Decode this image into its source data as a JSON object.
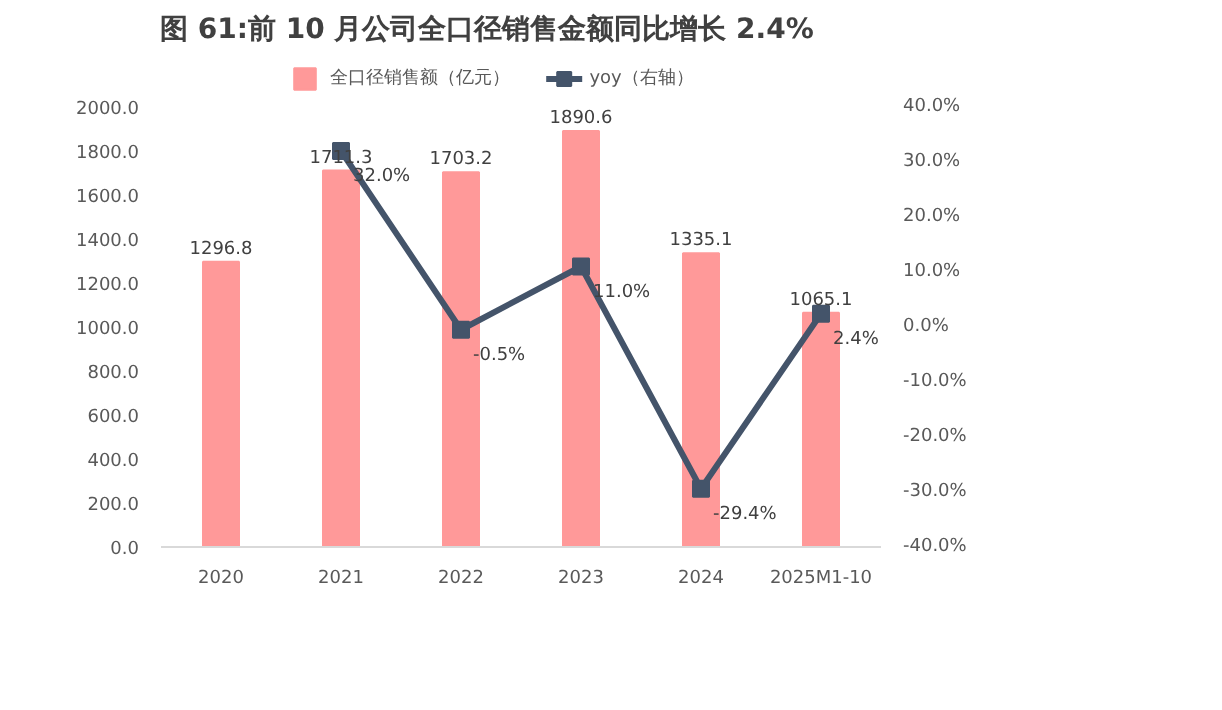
{
  "chart_data": {
    "type": "bar",
    "title": "图 61:前 10 月公司全口径销售金额同比增长 2.4%",
    "categories": [
      "2020",
      "2021",
      "2022",
      "2023",
      "2024",
      "2025M1-10"
    ],
    "series": [
      {
        "name": "全口径销售额（亿元）",
        "color": "#ff9999",
        "values": [
          1296.8,
          1711.3,
          1703.2,
          1890.6,
          1335.1,
          1065.1
        ],
        "value_labels": [
          "1296.8",
          "1711.3",
          "1703.2",
          "1890.6",
          "1335.1",
          "1065.1"
        ]
      },
      {
        "name": "yoy（右轴）",
        "type": "line",
        "axis": "y2",
        "color": "#44546a",
        "marker": "square",
        "values": [
          null,
          32.0,
          -0.5,
          11.0,
          -29.4,
          2.4
        ],
        "value_labels": [
          null,
          "32.0%",
          "-0.5%",
          "11.0%",
          "-29.4%",
          "2.4%"
        ]
      }
    ],
    "ylim": [
      0,
      2000
    ],
    "yticks": [
      {
        "value": 0,
        "label": "0.0"
      },
      {
        "value": 200,
        "label": "200.0"
      },
      {
        "value": 400,
        "label": "400.0"
      },
      {
        "value": 600,
        "label": "600.0"
      },
      {
        "value": 800,
        "label": "800.0"
      },
      {
        "value": 1000,
        "label": "1000.0"
      },
      {
        "value": 1200,
        "label": "1200.0"
      },
      {
        "value": 1400,
        "label": "1400.0"
      },
      {
        "value": 1600,
        "label": "1600.0"
      },
      {
        "value": 1800,
        "label": "1800.0"
      },
      {
        "value": 2000,
        "label": "2000.0"
      }
    ],
    "y2lim": [
      -40,
      40
    ],
    "y2ticks": [
      {
        "value": -40,
        "label": "-40.0%"
      },
      {
        "value": -30,
        "label": "-30.0%"
      },
      {
        "value": -20,
        "label": "-20.0%"
      },
      {
        "value": -10,
        "label": "-10.0%"
      },
      {
        "value": 0,
        "label": "0.0%"
      },
      {
        "value": 10,
        "label": "10.0%"
      },
      {
        "value": 20,
        "label": "20.0%"
      },
      {
        "value": 30,
        "label": "30.0%"
      },
      {
        "value": 40,
        "label": "40.0%"
      }
    ],
    "legend": "top",
    "grid": false
  }
}
